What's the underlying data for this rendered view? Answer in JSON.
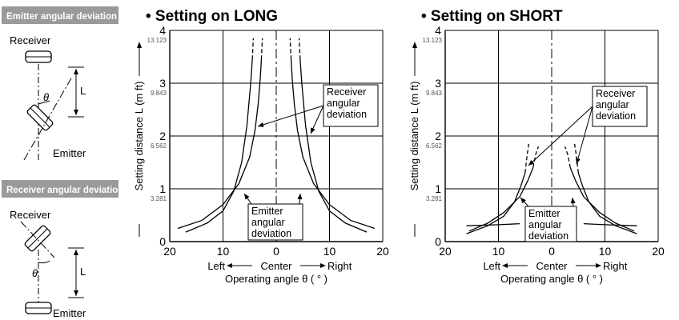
{
  "sidebar": {
    "emitter_panel": {
      "header": "Emitter angular deviation",
      "receiver_label": "Receiver",
      "emitter_label": "Emitter",
      "theta_symbol": "θ",
      "distance_symbol": "L"
    },
    "receiver_panel": {
      "header": "Receiver angular deviation",
      "receiver_label": "Receiver",
      "emitter_label": "Emitter",
      "theta_symbol": "θ",
      "distance_symbol": "L"
    },
    "header_bg_color": "#9a9a9a"
  },
  "chart_data": [
    {
      "type": "line",
      "title": "• Setting on LONG",
      "ylabel": "Setting distance L (m ft)",
      "x_axis": {
        "ticks": [
          {
            "value": -20,
            "label": "20"
          },
          {
            "value": -10,
            "label": "10"
          },
          {
            "value": 0,
            "label": "0"
          },
          {
            "value": 10,
            "label": "10"
          },
          {
            "value": 20,
            "label": "20"
          }
        ],
        "range": [
          -20,
          20
        ],
        "direction_labels": {
          "left": "Left",
          "center": "Center",
          "right": "Right"
        },
        "title": "Operating angle θ ( ° )"
      },
      "y_axis": {
        "range": [
          0,
          4
        ],
        "ticks": [
          {
            "value": 0,
            "label": "0",
            "sub": ""
          },
          {
            "value": 1,
            "label": "1",
            "sub": "3.281"
          },
          {
            "value": 2,
            "label": "2",
            "sub": "6.562"
          },
          {
            "value": 3,
            "label": "3",
            "sub": "9.843"
          },
          {
            "value": 4,
            "label": "4",
            "sub": "13.123"
          }
        ]
      },
      "grid": true,
      "annotations": [
        {
          "text": "Receiver angular deviation",
          "lines": [
            "Receiver",
            "angular",
            "deviation"
          ]
        },
        {
          "text": "Emitter angular deviation",
          "lines": [
            "Emitter",
            "angular",
            "deviation"
          ]
        }
      ],
      "series": [
        {
          "group": "receiver",
          "side": "left",
          "style": "solid",
          "points": [
            [
              -18.5,
              0.25
            ],
            [
              -14,
              0.4
            ],
            [
              -10,
              0.7
            ],
            [
              -7,
              1.1
            ],
            [
              -5,
              1.6
            ],
            [
              -4,
              2.1
            ],
            [
              -3.4,
              2.6
            ],
            [
              -3,
              3.1
            ],
            [
              -2.8,
              3.45
            ]
          ]
        },
        {
          "group": "receiver",
          "side": "left",
          "style": "dashed",
          "points": [
            [
              -2.8,
              3.45
            ],
            [
              -2.6,
              3.85
            ]
          ]
        },
        {
          "group": "receiver",
          "side": "right",
          "style": "solid",
          "points": [
            [
              18.5,
              0.25
            ],
            [
              14,
              0.4
            ],
            [
              10,
              0.7
            ],
            [
              7,
              1.1
            ],
            [
              5,
              1.6
            ],
            [
              4,
              2.1
            ],
            [
              3.4,
              2.6
            ],
            [
              3,
              3.1
            ],
            [
              2.8,
              3.45
            ]
          ]
        },
        {
          "group": "receiver",
          "side": "right",
          "style": "dashed",
          "points": [
            [
              2.8,
              3.45
            ],
            [
              2.6,
              3.85
            ]
          ]
        },
        {
          "group": "emitter",
          "side": "left",
          "style": "solid",
          "points": [
            [
              -17,
              0.18
            ],
            [
              -13,
              0.35
            ],
            [
              -10,
              0.58
            ],
            [
              -8,
              0.95
            ],
            [
              -6.5,
              1.5
            ],
            [
              -5.5,
              2.2
            ],
            [
              -4.8,
              3.0
            ],
            [
              -4.5,
              3.45
            ]
          ]
        },
        {
          "group": "emitter",
          "side": "left",
          "style": "dashed",
          "points": [
            [
              -4.5,
              3.45
            ],
            [
              -4.3,
              3.85
            ]
          ]
        },
        {
          "group": "emitter",
          "side": "right",
          "style": "solid",
          "points": [
            [
              17,
              0.18
            ],
            [
              13,
              0.35
            ],
            [
              10,
              0.58
            ],
            [
              8,
              0.95
            ],
            [
              6.5,
              1.5
            ],
            [
              5.5,
              2.2
            ],
            [
              4.8,
              3.0
            ],
            [
              4.5,
              3.45
            ]
          ]
        },
        {
          "group": "emitter",
          "side": "right",
          "style": "dashed",
          "points": [
            [
              4.5,
              3.45
            ],
            [
              4.3,
              3.85
            ]
          ]
        }
      ]
    },
    {
      "type": "line",
      "title": "• Setting on SHORT",
      "ylabel": "Setting distance L (m ft)",
      "x_axis": {
        "ticks": [
          {
            "value": -20,
            "label": "20"
          },
          {
            "value": -10,
            "label": "10"
          },
          {
            "value": 0,
            "label": "0"
          },
          {
            "value": 10,
            "label": "10"
          },
          {
            "value": 20,
            "label": "20"
          }
        ],
        "range": [
          -20,
          20
        ],
        "direction_labels": {
          "left": "Left",
          "center": "Center",
          "right": "Right"
        },
        "title": "Operating angle θ ( ° )"
      },
      "y_axis": {
        "range": [
          0,
          4
        ],
        "ticks": [
          {
            "value": 0,
            "label": "0",
            "sub": ""
          },
          {
            "value": 1,
            "label": "1",
            "sub": "3.281"
          },
          {
            "value": 2,
            "label": "2",
            "sub": "6.562"
          },
          {
            "value": 3,
            "label": "3",
            "sub": "9.843"
          },
          {
            "value": 4,
            "label": "4",
            "sub": "13.123"
          }
        ]
      },
      "grid": true,
      "annotations": [
        {
          "text": "Receiver angular deviation",
          "lines": [
            "Receiver",
            "angular",
            "deviation"
          ]
        },
        {
          "text": "Emitter angular deviation",
          "lines": [
            "Emitter",
            "angular",
            "deviation"
          ]
        }
      ],
      "series": [
        {
          "group": "receiver",
          "side": "left",
          "style": "solid",
          "points": [
            [
              -15.5,
              0.2
            ],
            [
              -12,
              0.35
            ],
            [
              -9,
              0.55
            ],
            [
              -6,
              0.85
            ],
            [
              -4.5,
              1.15
            ],
            [
              -3.5,
              1.4
            ]
          ]
        },
        {
          "group": "receiver",
          "side": "left",
          "style": "dashed",
          "points": [
            [
              -3.5,
              1.4
            ],
            [
              -3.0,
              1.65
            ],
            [
              -2.5,
              1.8
            ]
          ]
        },
        {
          "group": "receiver",
          "side": "right",
          "style": "solid",
          "points": [
            [
              15.5,
              0.2
            ],
            [
              12,
              0.35
            ],
            [
              9,
              0.55
            ],
            [
              6,
              0.85
            ],
            [
              4.5,
              1.15
            ],
            [
              3.5,
              1.4
            ]
          ]
        },
        {
          "group": "receiver",
          "side": "right",
          "style": "dashed",
          "points": [
            [
              3.5,
              1.4
            ],
            [
              3.0,
              1.65
            ],
            [
              2.5,
              1.8
            ]
          ]
        },
        {
          "group": "emitter",
          "side": "left",
          "style": "solid",
          "points": [
            [
              -16,
              0.15
            ],
            [
              -12,
              0.3
            ],
            [
              -9,
              0.48
            ],
            [
              -7,
              0.75
            ],
            [
              -5.8,
              1.05
            ],
            [
              -5.0,
              1.3
            ]
          ]
        },
        {
          "group": "emitter",
          "side": "left",
          "style": "dashed",
          "points": [
            [
              -5.0,
              1.3
            ],
            [
              -4.6,
              1.65
            ],
            [
              -4.3,
              1.85
            ]
          ]
        },
        {
          "group": "emitter",
          "side": "right",
          "style": "solid",
          "points": [
            [
              16,
              0.15
            ],
            [
              12,
              0.3
            ],
            [
              9,
              0.48
            ],
            [
              7,
              0.75
            ],
            [
              5.8,
              1.05
            ],
            [
              5.0,
              1.3
            ]
          ]
        },
        {
          "group": "emitter",
          "side": "right",
          "style": "dashed",
          "points": [
            [
              5.0,
              1.3
            ],
            [
              4.6,
              1.65
            ],
            [
              4.3,
              1.85
            ]
          ]
        },
        {
          "group": "flat",
          "side": "left",
          "style": "solid",
          "points": [
            [
              -16,
              0.3
            ],
            [
              -10,
              0.32
            ],
            [
              -6,
              0.34
            ]
          ]
        },
        {
          "group": "flat",
          "side": "right",
          "style": "solid",
          "points": [
            [
              16,
              0.3
            ],
            [
              10,
              0.32
            ],
            [
              6,
              0.34
            ]
          ]
        }
      ]
    }
  ]
}
